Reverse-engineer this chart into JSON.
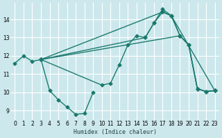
{
  "bg_color": "#cde8ec",
  "grid_color": "#ffffff",
  "line_color": "#1a7a6e",
  "marker": "D",
  "markersize": 2.5,
  "linewidth": 1.0,
  "xlabel": "Humidex (Indice chaleur)",
  "xlim": [
    -0.5,
    23.5
  ],
  "ylim": [
    8.5,
    14.9
  ],
  "yticks": [
    9,
    10,
    11,
    12,
    13,
    14
  ],
  "xticks": [
    0,
    1,
    2,
    3,
    4,
    5,
    6,
    7,
    8,
    9,
    10,
    11,
    12,
    13,
    14,
    15,
    16,
    17,
    18,
    19,
    20,
    21,
    22,
    23
  ],
  "series": [
    {
      "x": [
        0,
        1,
        2,
        3,
        4,
        5,
        6,
        7,
        8,
        9
      ],
      "y": [
        11.6,
        12.0,
        11.7,
        11.8,
        10.1,
        9.6,
        9.2,
        8.8,
        8.85,
        10.0
      ]
    },
    {
      "x": [
        3,
        10,
        11,
        12,
        13,
        14,
        15,
        16,
        17,
        18,
        19,
        20,
        21,
        22,
        23
      ],
      "y": [
        11.8,
        10.4,
        10.5,
        11.5,
        12.6,
        13.1,
        13.0,
        13.8,
        14.55,
        14.2,
        13.1,
        12.6,
        10.2,
        10.05,
        10.1
      ]
    },
    {
      "x": [
        3,
        15,
        16,
        17,
        18,
        23
      ],
      "y": [
        11.8,
        13.0,
        13.8,
        14.4,
        14.2,
        10.1
      ]
    },
    {
      "x": [
        3,
        17,
        18,
        19,
        20,
        21,
        22,
        23
      ],
      "y": [
        11.8,
        14.4,
        14.2,
        13.1,
        12.6,
        10.2,
        10.05,
        10.1
      ]
    },
    {
      "x": [
        3,
        19,
        20,
        21,
        22,
        23
      ],
      "y": [
        11.8,
        13.1,
        12.6,
        10.2,
        10.05,
        10.1
      ]
    }
  ]
}
